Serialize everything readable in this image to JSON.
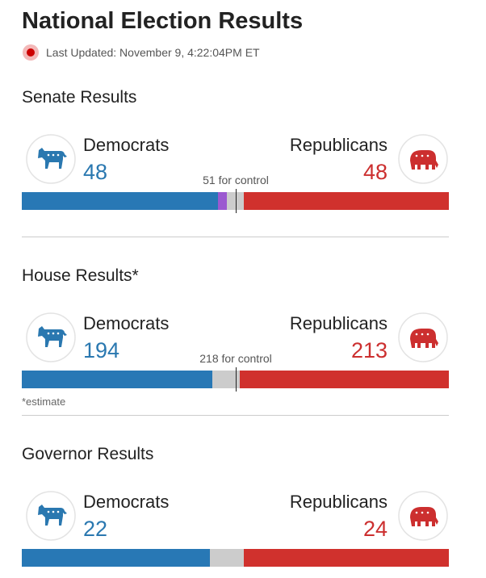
{
  "header": {
    "title": "National Election Results",
    "last_updated": "Last Updated: November 9, 4:22:04PM ET"
  },
  "sections": [
    {
      "title": "Senate Results",
      "dem_label": "Democrats",
      "dem_seats": 48,
      "rep_label": "Republicans",
      "rep_seats": 48,
      "control": "51 for control",
      "independent_seats": 2,
      "total_seats": 100
    },
    {
      "title": "House Results*",
      "dem_label": "Democrats",
      "dem_seats": 194,
      "rep_label": "Republicans",
      "rep_seats": 213,
      "control": "218 for control",
      "total_seats": 435,
      "note": "*estimate"
    },
    {
      "title": "Governor Results",
      "dem_label": "Democrats",
      "dem_seats": 22,
      "rep_label": "Republicans",
      "rep_seats": 24,
      "total_seats": 50
    }
  ]
}
